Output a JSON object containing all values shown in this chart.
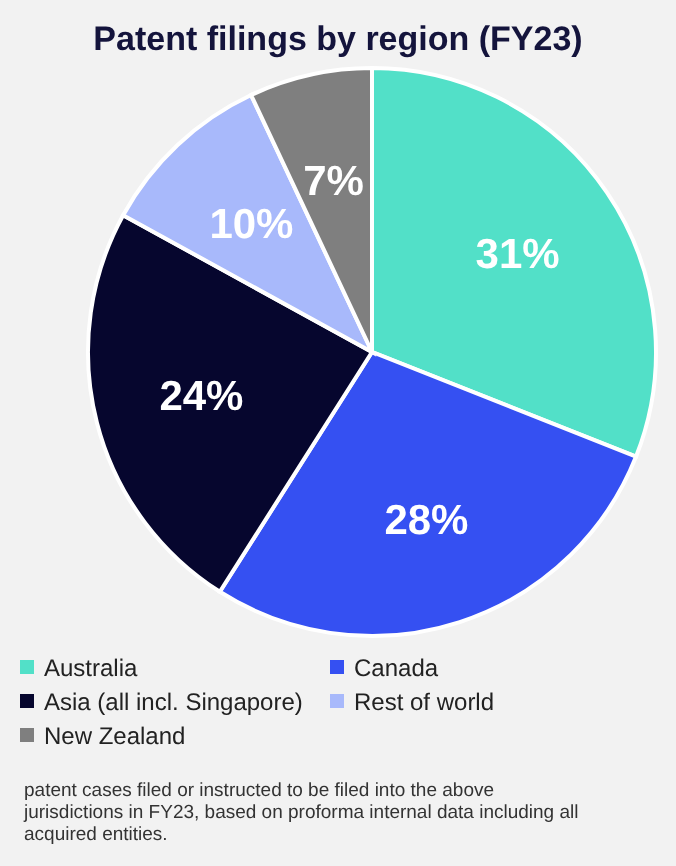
{
  "chart_data": {
    "type": "pie",
    "title": "Patent filings by region (FY23)",
    "categories": [
      "Australia",
      "Canada",
      "Asia (all incl. Singapore)",
      "Rest of world",
      "New Zealand"
    ],
    "values": [
      31,
      28,
      24,
      10,
      7
    ],
    "colors": [
      "#52e0c8",
      "#3550f2",
      "#06062e",
      "#a8b9fb",
      "#7f7f7f"
    ],
    "value_labels": [
      "31%",
      "28%",
      "24%",
      "10%",
      "7%"
    ],
    "legend": "bottom",
    "annotations": [
      "patent cases filed or instructed to be filed into the above jurisdictions in FY23, based on proforma internal data including all acquired entities."
    ]
  }
}
